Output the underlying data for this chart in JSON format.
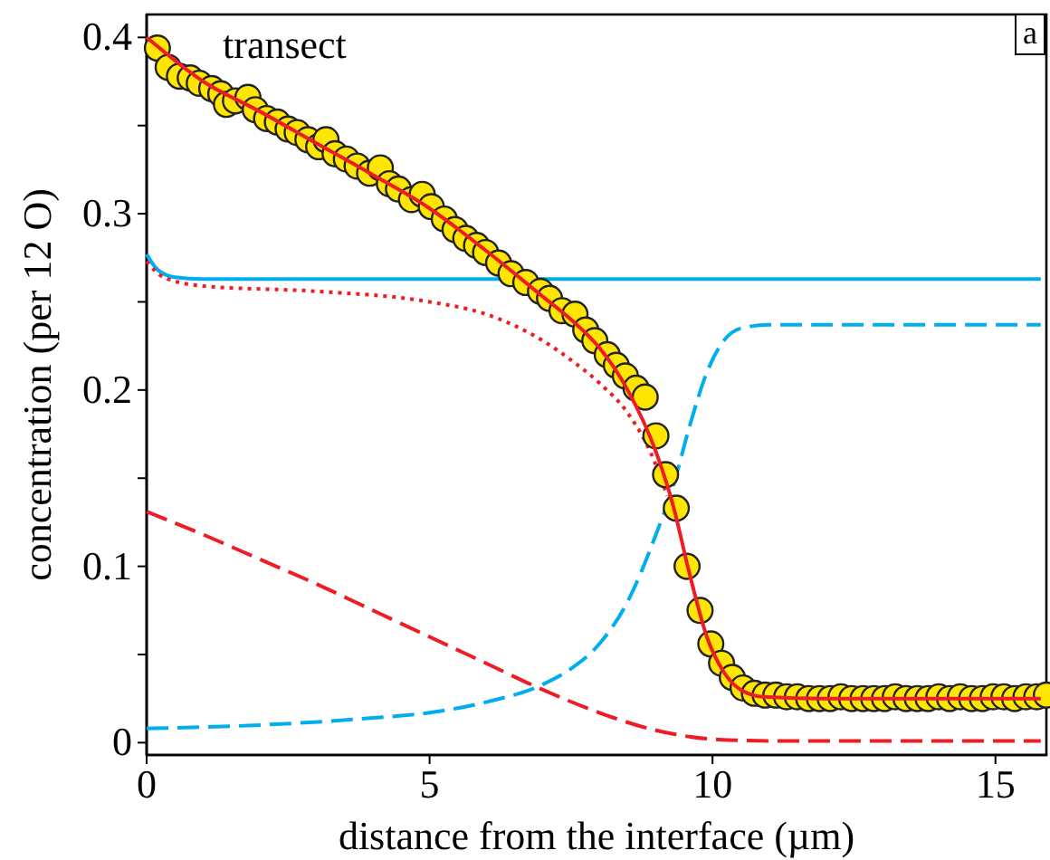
{
  "chart_data": {
    "type": "line",
    "title": "transect",
    "xlabel": "distance from the interface (µm)",
    "ylabel": "concentration (per 12 O)",
    "annotations": [
      "a"
    ],
    "xlim": [
      0,
      15.9
    ],
    "ylim": [
      -0.007,
      0.413
    ],
    "xticks": [
      0,
      5,
      10,
      15
    ],
    "yticks": [
      {
        "value": 0,
        "label": "0"
      },
      {
        "value": 0.05,
        "label": null
      },
      {
        "value": 0.1,
        "label": "0.1"
      },
      {
        "value": 0.15,
        "label": null
      },
      {
        "value": 0.2,
        "label": "0.2"
      },
      {
        "value": 0.25,
        "label": null
      },
      {
        "value": 0.3,
        "label": "0.3"
      },
      {
        "value": 0.35,
        "label": null
      },
      {
        "value": 0.4,
        "label": "0.4"
      }
    ],
    "grid": false,
    "series": [
      {
        "line_style": "solid",
        "color": "#00aeef",
        "x": [
          0,
          0.2,
          0.5,
          1,
          15.8
        ],
        "values": [
          0.277,
          0.268,
          0.264,
          0.263,
          0.263
        ]
      },
      {
        "line_style": "dashed",
        "color": "#00aeef",
        "x": [
          0,
          2,
          4,
          5,
          6,
          7,
          7.5,
          8,
          8.5,
          9,
          9.3,
          9.6,
          9.9,
          10.2,
          10.5,
          11,
          15.8
        ],
        "values": [
          0.008,
          0.01,
          0.014,
          0.017,
          0.023,
          0.033,
          0.042,
          0.056,
          0.08,
          0.118,
          0.145,
          0.18,
          0.21,
          0.228,
          0.235,
          0.237,
          0.237
        ]
      },
      {
        "line_style": "dashed",
        "color": "#ee1c25",
        "x": [
          0,
          1,
          2,
          3,
          4,
          5,
          6,
          7,
          8,
          9,
          10,
          11,
          15.8
        ],
        "values": [
          0.131,
          0.118,
          0.104,
          0.09,
          0.075,
          0.06,
          0.045,
          0.03,
          0.017,
          0.007,
          0.002,
          0.001,
          0.001
        ]
      },
      {
        "line_style": "dotted",
        "color": "#ee1c25",
        "x": [
          0,
          0.3,
          1,
          3,
          5,
          6,
          7,
          7.5,
          8,
          8.5,
          8.9,
          9.2
        ],
        "values": [
          0.273,
          0.264,
          0.259,
          0.256,
          0.25,
          0.243,
          0.228,
          0.217,
          0.204,
          0.187,
          0.165,
          0.14
        ]
      },
      {
        "type": "scatter",
        "marker": "circle",
        "color": "#ffe600",
        "x": [
          0.19,
          0.38,
          0.58,
          0.77,
          0.93,
          1.15,
          1.31,
          1.41,
          1.57,
          1.79,
          1.92,
          2.12,
          2.31,
          2.5,
          2.66,
          2.85,
          3.04,
          3.17,
          3.33,
          3.53,
          3.72,
          3.94,
          4.13,
          4.29,
          4.45,
          4.68,
          4.87,
          5.03,
          5.26,
          5.45,
          5.64,
          5.83,
          5.99,
          6.22,
          6.44,
          6.7,
          6.96,
          7.12,
          7.34,
          7.57,
          7.76,
          7.92,
          8.14,
          8.3,
          8.46,
          8.65,
          8.81,
          9.0,
          9.17,
          9.36,
          9.55,
          9.78,
          9.97,
          10.16,
          10.35,
          10.54,
          10.74,
          10.93,
          11.12,
          11.31,
          11.5,
          11.7,
          11.89,
          12.08,
          12.27,
          12.46,
          12.66,
          12.85,
          13.04,
          13.23,
          13.42,
          13.62,
          13.81,
          14.0,
          14.19,
          14.38,
          14.58,
          14.77,
          14.96,
          15.15,
          15.34,
          15.54,
          15.73,
          15.9
        ],
        "values": [
          0.394,
          0.383,
          0.378,
          0.377,
          0.374,
          0.371,
          0.368,
          0.362,
          0.364,
          0.366,
          0.359,
          0.354,
          0.352,
          0.348,
          0.346,
          0.342,
          0.338,
          0.342,
          0.334,
          0.331,
          0.327,
          0.323,
          0.326,
          0.317,
          0.314,
          0.308,
          0.311,
          0.304,
          0.297,
          0.291,
          0.286,
          0.282,
          0.278,
          0.272,
          0.266,
          0.261,
          0.256,
          0.252,
          0.245,
          0.243,
          0.234,
          0.228,
          0.22,
          0.214,
          0.208,
          0.201,
          0.196,
          0.174,
          0.152,
          0.133,
          0.1,
          0.075,
          0.056,
          0.045,
          0.037,
          0.031,
          0.028,
          0.027,
          0.027,
          0.026,
          0.026,
          0.025,
          0.025,
          0.025,
          0.026,
          0.025,
          0.025,
          0.025,
          0.025,
          0.026,
          0.025,
          0.025,
          0.025,
          0.026,
          0.025,
          0.026,
          0.025,
          0.025,
          0.026,
          0.026,
          0.025,
          0.026,
          0.026,
          0.027
        ]
      },
      {
        "line_style": "solid",
        "color": "#ee1c25",
        "x": [
          0,
          1,
          2,
          3,
          4,
          5,
          6,
          7,
          7.5,
          8,
          8.5,
          9,
          9.3,
          9.6,
          9.9,
          10.2,
          10.5,
          10.9,
          12,
          15.8
        ],
        "values": [
          0.4,
          0.375,
          0.358,
          0.34,
          0.322,
          0.303,
          0.279,
          0.253,
          0.24,
          0.224,
          0.2,
          0.165,
          0.135,
          0.095,
          0.06,
          0.04,
          0.03,
          0.026,
          0.025,
          0.025
        ]
      }
    ]
  }
}
